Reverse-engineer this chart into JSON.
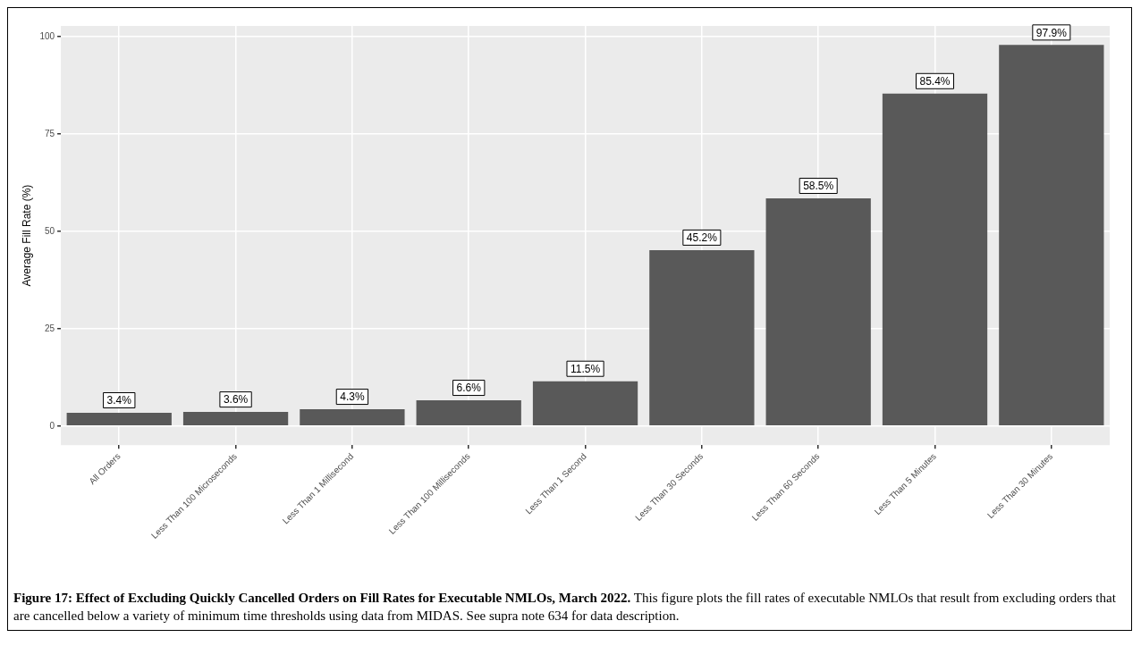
{
  "chart_data": {
    "type": "bar",
    "title": "Figure 17: Effect of Excluding Quickly Cancelled Orders on Fill Rates for Executable NMLOs, March 2022.",
    "subtitle": "This figure plots the fill rates of executable NMLOs that result from excluding orders that are cancelled below a variety of minimum time thresholds using data from MIDAS. See supra note 634 for data description.",
    "ylabel": "Average Fill Rate (%)",
    "categories": [
      "All Orders",
      "Less Than 100 Microseconds",
      "Less Than 1 Millisecond",
      "Less Than 100 Milliseconds",
      "Less Than 1 Second",
      "Less Than 30 Seconds",
      "Less Than 60 Seconds",
      "Less Than 5 Minutes",
      "Less Than 30 Minutes"
    ],
    "values": [
      3.4,
      3.6,
      4.3,
      6.6,
      11.5,
      45.2,
      58.5,
      85.4,
      97.9
    ],
    "value_labels": [
      "3.4%",
      "3.6%",
      "4.3%",
      "6.6%",
      "11.5%",
      "45.2%",
      "58.5%",
      "85.4%",
      "97.9%"
    ],
    "color": "#595959",
    "ylim": [
      -4.9,
      102.8
    ],
    "yticks": [
      0,
      25,
      50,
      75,
      100
    ],
    "grid": true,
    "legend": false
  }
}
